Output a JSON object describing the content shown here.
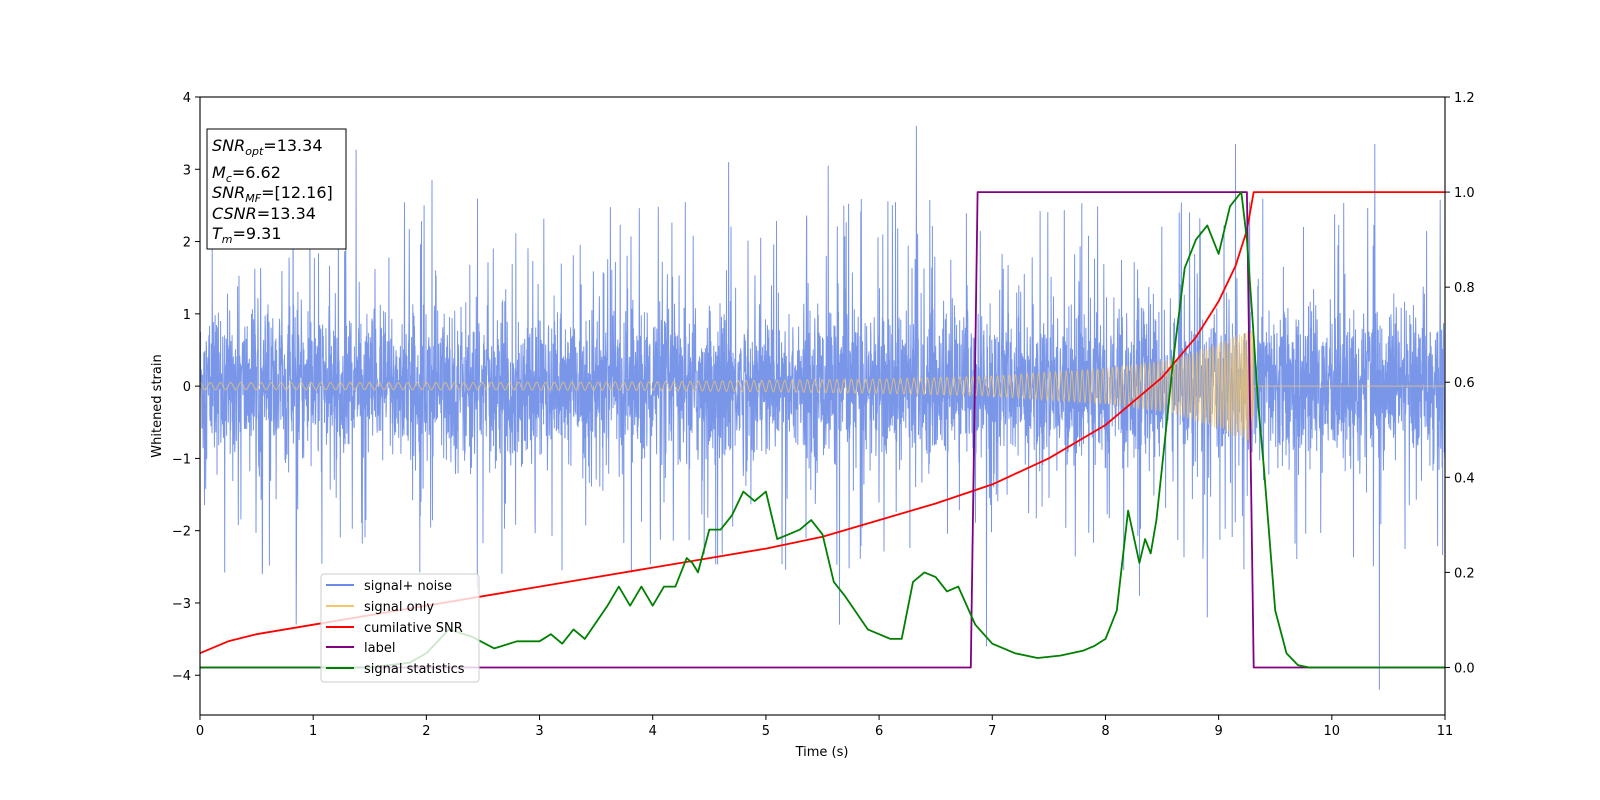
{
  "chart_data": {
    "type": "line",
    "xlabel": "Time (s)",
    "ylabel": "Whitened strain",
    "xlim": [
      0,
      11
    ],
    "ylim": [
      -4.55,
      4.0
    ],
    "y2lim": [
      -0.1,
      1.2
    ],
    "x_ticks": [
      0,
      1,
      2,
      3,
      4,
      5,
      6,
      7,
      8,
      9,
      10,
      11
    ],
    "x_tick_labels": [
      "0",
      "1",
      "2",
      "3",
      "4",
      "5",
      "6",
      "7",
      "8",
      "9",
      "10",
      "11"
    ],
    "y_ticks": [
      4,
      3,
      2,
      1,
      0,
      -1,
      -2,
      -3,
      -4
    ],
    "y_tick_labels": [
      "4",
      "3",
      "2",
      "1",
      "0",
      "−1",
      "−2",
      "−3",
      "−4"
    ],
    "y2_ticks": [
      1.2,
      1.0,
      0.8,
      0.6,
      0.4,
      0.2,
      0.0
    ],
    "y2_tick_labels": [
      "1.2",
      "1.0",
      "0.8",
      "0.6",
      "0.4",
      "0.2",
      "0.0"
    ],
    "legend_position": "lower-left",
    "legend": [
      {
        "label": "signal+ noise",
        "color": "#6a8be6"
      },
      {
        "label": "signal only",
        "color": "#f5c56a"
      },
      {
        "label": "cumilative SNR",
        "color": "#ff0000"
      },
      {
        "label": "label",
        "color": "#800080"
      },
      {
        "label": "signal statistics",
        "color": "#008000"
      }
    ],
    "annotation": {
      "lines": [
        {
          "base": "SNR",
          "sub": "opt",
          "value": "=13.34"
        },
        {
          "base": "M",
          "sub": "c",
          "value": "=6.62"
        },
        {
          "base": "SNR",
          "sub": "MF",
          "value": "=[12.16]"
        },
        {
          "base": "CSNR",
          "sub": "",
          "value": "=13.34"
        },
        {
          "base": "T",
          "sub": "m",
          "value": "=9.31"
        }
      ]
    },
    "series": [
      {
        "name": "signal+ noise",
        "axis": "left",
        "color": "#6a8be6",
        "kind": "noise",
        "t_start": 0,
        "t_end": 11,
        "typical_abs_range": [
          -1.3,
          1.3
        ],
        "extremes": [
          [
            0.85,
            -3.3
          ],
          [
            1.38,
            3.27
          ],
          [
            1.98,
            2.5
          ],
          [
            4.67,
            3.1
          ],
          [
            5.55,
            3.05
          ],
          [
            6.33,
            3.6
          ],
          [
            5.65,
            -3.3
          ],
          [
            6.95,
            -3.6
          ],
          [
            8.9,
            -3.2
          ],
          [
            9.15,
            3.35
          ],
          [
            10.38,
            3.35
          ],
          [
            10.42,
            -4.2
          ],
          [
            8.3,
            -2.9
          ],
          [
            2.05,
            2.85
          ],
          [
            0.55,
            -2.6
          ],
          [
            2.45,
            -2.8
          ]
        ]
      },
      {
        "name": "signal only",
        "axis": "left",
        "color": "#f5c56a",
        "kind": "chirp",
        "t_start": 0,
        "t_merger": 9.31,
        "amplitude_envelope": [
          [
            0,
            0.05
          ],
          [
            2,
            0.05
          ],
          [
            4,
            0.06
          ],
          [
            6,
            0.1
          ],
          [
            7,
            0.14
          ],
          [
            8,
            0.25
          ],
          [
            8.6,
            0.38
          ],
          [
            9.0,
            0.6
          ],
          [
            9.3,
            0.8
          ]
        ]
      },
      {
        "name": "cumilative SNR",
        "axis": "right",
        "color": "#ff0000",
        "x": [
          0,
          0.25,
          0.5,
          1,
          1.5,
          2,
          2.5,
          3,
          3.5,
          4,
          4.5,
          5,
          5.5,
          6,
          6.5,
          7,
          7.5,
          8,
          8.5,
          8.8,
          9.0,
          9.15,
          9.25,
          9.31,
          11
        ],
        "y": [
          0.03,
          0.055,
          0.07,
          0.09,
          0.11,
          0.13,
          0.15,
          0.17,
          0.19,
          0.21,
          0.23,
          0.25,
          0.275,
          0.31,
          0.345,
          0.385,
          0.44,
          0.51,
          0.61,
          0.695,
          0.77,
          0.845,
          0.92,
          1.0,
          1.0
        ]
      },
      {
        "name": "label",
        "axis": "right",
        "color": "#800080",
        "x": [
          0,
          6.81,
          6.87,
          9.25,
          9.31,
          11
        ],
        "y": [
          0,
          0,
          1,
          1,
          0,
          0
        ]
      },
      {
        "name": "signal statistics",
        "axis": "right",
        "color": "#008000",
        "x": [
          0,
          1.0,
          1.5,
          1.85,
          2.0,
          2.2,
          2.4,
          2.6,
          2.8,
          3.0,
          3.1,
          3.2,
          3.3,
          3.4,
          3.6,
          3.7,
          3.8,
          3.9,
          4.0,
          4.1,
          4.2,
          4.3,
          4.35,
          4.4,
          4.5,
          4.6,
          4.7,
          4.8,
          4.9,
          5.0,
          5.1,
          5.2,
          5.3,
          5.4,
          5.5,
          5.6,
          5.7,
          5.9,
          6.0,
          6.1,
          6.2,
          6.3,
          6.4,
          6.5,
          6.6,
          6.7,
          6.85,
          7.0,
          7.2,
          7.4,
          7.6,
          7.8,
          7.9,
          8.0,
          8.1,
          8.2,
          8.3,
          8.35,
          8.4,
          8.45,
          8.5,
          8.6,
          8.7,
          8.8,
          8.9,
          9.0,
          9.1,
          9.2,
          9.25,
          9.3,
          9.35,
          9.4,
          9.5,
          9.6,
          9.7,
          9.8,
          10.0,
          11.0
        ],
        "y": [
          0.0,
          0.0,
          0.0,
          0.01,
          0.03,
          0.08,
          0.065,
          0.04,
          0.055,
          0.055,
          0.07,
          0.05,
          0.08,
          0.06,
          0.13,
          0.17,
          0.13,
          0.17,
          0.13,
          0.17,
          0.17,
          0.23,
          0.22,
          0.2,
          0.29,
          0.29,
          0.32,
          0.37,
          0.35,
          0.37,
          0.27,
          0.28,
          0.29,
          0.31,
          0.28,
          0.18,
          0.15,
          0.08,
          0.07,
          0.06,
          0.06,
          0.18,
          0.2,
          0.19,
          0.16,
          0.17,
          0.09,
          0.05,
          0.03,
          0.02,
          0.025,
          0.035,
          0.045,
          0.06,
          0.12,
          0.33,
          0.22,
          0.27,
          0.24,
          0.31,
          0.42,
          0.65,
          0.84,
          0.9,
          0.93,
          0.87,
          0.97,
          1.0,
          0.9,
          0.73,
          0.55,
          0.42,
          0.12,
          0.03,
          0.005,
          0.0,
          0.0,
          0.0
        ]
      }
    ]
  }
}
